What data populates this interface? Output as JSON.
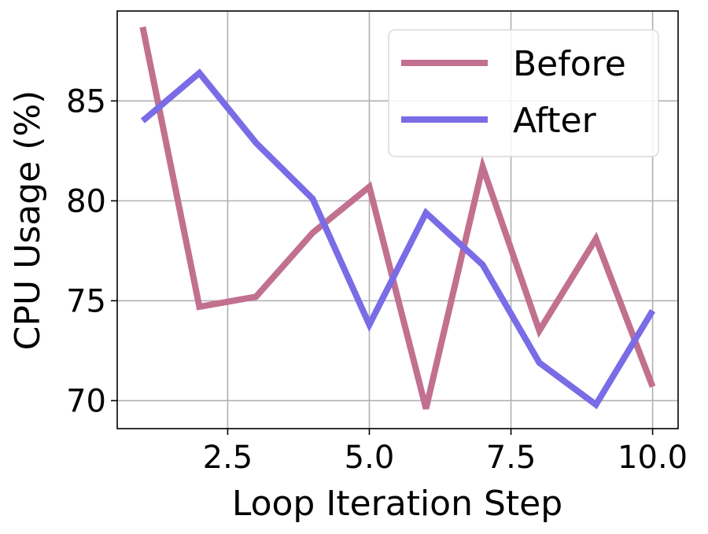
{
  "chart_data": {
    "type": "line",
    "xlabel": "Loop Iteration Step",
    "ylabel": "CPU Usage (%)",
    "xlim": [
      0.55,
      10.45
    ],
    "ylim": [
      68.6,
      89.5
    ],
    "xticks": [
      2.5,
      5.0,
      7.5,
      10.0
    ],
    "xtick_labels": [
      "2.5",
      "5.0",
      "7.5",
      "10.0"
    ],
    "yticks": [
      70,
      75,
      80,
      85
    ],
    "ytick_labels": [
      "70",
      "75",
      "80",
      "85"
    ],
    "grid": true,
    "legend_position": "top-right",
    "x": [
      1,
      2,
      3,
      4,
      5,
      6,
      7,
      8,
      9,
      10
    ],
    "series": [
      {
        "name": "Before",
        "color": "#c2708f",
        "values": [
          88.7,
          74.7,
          75.2,
          78.4,
          80.7,
          69.6,
          81.7,
          73.5,
          78.1,
          70.7
        ]
      },
      {
        "name": "After",
        "color": "#7a6be6",
        "values": [
          84.0,
          86.4,
          82.9,
          80.1,
          73.8,
          79.4,
          76.8,
          71.9,
          69.8,
          74.5
        ]
      }
    ]
  }
}
